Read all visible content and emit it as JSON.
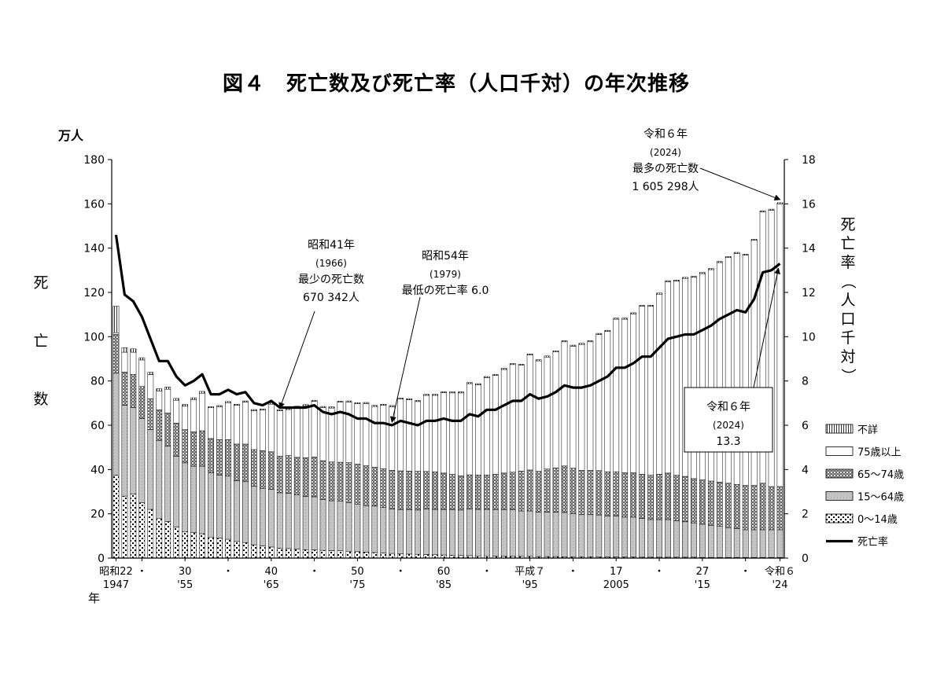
{
  "title": "図４　死亡数及び死亡率（人口千対）の年次推移",
  "chart_data": {
    "type": "bar+line",
    "left_axis": {
      "unit": "万人",
      "label_chars": [
        "死",
        "亡",
        "数"
      ],
      "range": [
        0,
        180
      ],
      "ticks": [
        "0",
        "20",
        "40",
        "60",
        "80",
        "100",
        "120",
        "140",
        "160",
        "180"
      ]
    },
    "right_axis": {
      "label_chars": [
        "死",
        "亡",
        "率",
        "（",
        "人",
        "口",
        "千",
        "対",
        "）"
      ],
      "range": [
        0,
        18
      ],
      "ticks": [
        "0",
        "2",
        "4",
        "6",
        "8",
        "10",
        "12",
        "14",
        "16",
        "18"
      ]
    },
    "x_axis": {
      "year_label": "年",
      "start_year": 1947,
      "end_year": 2024,
      "ticks_top": [
        {
          "year": 1947,
          "label": "昭和22"
        },
        {
          "year": 1950,
          "label": "・"
        },
        {
          "year": 1955,
          "label": "30"
        },
        {
          "year": 1960,
          "label": "・"
        },
        {
          "year": 1965,
          "label": "40"
        },
        {
          "year": 1970,
          "label": "・"
        },
        {
          "year": 1975,
          "label": "50"
        },
        {
          "year": 1980,
          "label": "・"
        },
        {
          "year": 1985,
          "label": "60"
        },
        {
          "year": 1990,
          "label": "・"
        },
        {
          "year": 1995,
          "label": "平成７"
        },
        {
          "year": 2000,
          "label": "・"
        },
        {
          "year": 2005,
          "label": "17"
        },
        {
          "year": 2010,
          "label": "・"
        },
        {
          "year": 2015,
          "label": "27"
        },
        {
          "year": 2020,
          "label": "・"
        },
        {
          "year": 2024,
          "label": "令和６"
        }
      ],
      "ticks_bottom": [
        {
          "year": 1947,
          "label": "1947"
        },
        {
          "year": 1955,
          "label": "'55"
        },
        {
          "year": 1965,
          "label": "'65"
        },
        {
          "year": 1975,
          "label": "'75"
        },
        {
          "year": 1985,
          "label": "'85"
        },
        {
          "year": 1995,
          "label": "'95"
        },
        {
          "year": 2005,
          "label": "2005"
        },
        {
          "year": 2015,
          "label": "'15"
        },
        {
          "year": 2024,
          "label": "'24"
        }
      ]
    },
    "legend": {
      "placement": "right",
      "items": [
        {
          "key": "unknown",
          "label": "不詳"
        },
        {
          "key": "age75",
          "label": "75歳以上"
        },
        {
          "key": "age65",
          "label": "65～74歳"
        },
        {
          "key": "age15",
          "label": "15～64歳"
        },
        {
          "key": "age0",
          "label": "0～14歳"
        },
        {
          "key": "rate",
          "label": "死亡率"
        }
      ]
    },
    "annotations": {
      "min_deaths": {
        "lines": [
          "昭和41年",
          "(1966)",
          "最少の死亡数",
          "670 342人"
        ]
      },
      "min_rate": {
        "lines": [
          "昭和54年",
          "(1979)",
          "最低の死亡率 6.0"
        ]
      },
      "max_deaths": {
        "lines": [
          "令和６年",
          "(2024)",
          "最多の死亡数",
          "1 605 298人"
        ]
      },
      "rate_2024": {
        "lines": [
          "令和６年",
          "(2024)",
          "13.3"
        ]
      }
    },
    "years": [
      1947,
      1948,
      1949,
      1950,
      1951,
      1952,
      1953,
      1954,
      1955,
      1956,
      1957,
      1958,
      1959,
      1960,
      1961,
      1962,
      1963,
      1964,
      1965,
      1966,
      1967,
      1968,
      1969,
      1970,
      1971,
      1972,
      1973,
      1974,
      1975,
      1976,
      1977,
      1978,
      1979,
      1980,
      1981,
      1982,
      1983,
      1984,
      1985,
      1986,
      1987,
      1988,
      1989,
      1990,
      1991,
      1992,
      1993,
      1994,
      1995,
      1996,
      1997,
      1998,
      1999,
      2000,
      2001,
      2002,
      2003,
      2004,
      2005,
      2006,
      2007,
      2008,
      2009,
      2010,
      2011,
      2012,
      2013,
      2014,
      2015,
      2016,
      2017,
      2018,
      2019,
      2020,
      2021,
      2022,
      2023,
      2024
    ],
    "total_deaths": [
      113.8,
      95.0,
      94.5,
      90.5,
      83.9,
      76.5,
      77.3,
      72.1,
      69.4,
      72.4,
      75.3,
      68.4,
      68.9,
      70.7,
      69.5,
      71.0,
      67.1,
      67.4,
      70.0,
      67.0,
      67.6,
      68.6,
      69.3,
      71.3,
      68.5,
      68.3,
      70.9,
      71.0,
      70.2,
      70.3,
      69.0,
      69.5,
      68.9,
      72.3,
      72.0,
      71.2,
      74.0,
      74.0,
      75.2,
      75.1,
      75.1,
      79.3,
      78.8,
      82.0,
      83.0,
      85.7,
      87.9,
      87.6,
      92.2,
      89.6,
      91.3,
      93.6,
      98.2,
      96.2,
      97.0,
      98.2,
      101.5,
      102.9,
      108.4,
      108.4,
      110.8,
      114.2,
      114.2,
      119.7,
      125.3,
      125.6,
      126.8,
      127.3,
      129.0,
      130.8,
      134.0,
      136.2,
      138.1,
      137.3,
      144.0,
      156.9,
      157.6,
      160.5
    ],
    "age_0_14": [
      37.5,
      28.0,
      29.0,
      25.0,
      22.0,
      18.0,
      16.5,
      14.0,
      12.0,
      11.5,
      11.0,
      9.5,
      9.0,
      8.5,
      7.5,
      7.0,
      6.0,
      5.5,
      5.0,
      4.5,
      4.3,
      4.0,
      3.8,
      3.7,
      3.5,
      3.4,
      3.3,
      3.1,
      2.9,
      2.7,
      2.5,
      2.3,
      2.1,
      1.9,
      1.8,
      1.7,
      1.6,
      1.5,
      1.4,
      1.3,
      1.2,
      1.1,
      1.0,
      1.0,
      0.9,
      0.9,
      0.8,
      0.8,
      0.8,
      0.7,
      0.7,
      0.7,
      0.6,
      0.6,
      0.6,
      0.6,
      0.5,
      0.5,
      0.5,
      0.5,
      0.5,
      0.4,
      0.4,
      0.4,
      0.4,
      0.4,
      0.4,
      0.4,
      0.3,
      0.3,
      0.3,
      0.3,
      0.3,
      0.3,
      0.3,
      0.3,
      0.3,
      0.3
    ],
    "age_15_64": [
      46.0,
      41.0,
      39.0,
      38.0,
      36.0,
      35.0,
      34.0,
      32.0,
      31.0,
      30.0,
      30.5,
      29.0,
      28.5,
      28.5,
      27.5,
      27.5,
      26.5,
      26.0,
      26.0,
      25.0,
      25.0,
      24.5,
      24.0,
      24.0,
      23.0,
      22.5,
      22.5,
      22.0,
      21.5,
      21.0,
      21.0,
      20.5,
      20.0,
      20.0,
      20.0,
      20.0,
      20.5,
      20.5,
      20.5,
      20.5,
      20.5,
      21.0,
      21.0,
      21.0,
      21.0,
      21.0,
      21.0,
      20.5,
      20.5,
      20.0,
      20.0,
      20.0,
      20.0,
      19.5,
      19.0,
      19.0,
      19.0,
      18.5,
      18.5,
      18.0,
      18.0,
      17.5,
      17.0,
      17.0,
      17.0,
      16.5,
      16.0,
      15.5,
      15.0,
      14.5,
      14.0,
      13.5,
      13.0,
      12.5,
      12.5,
      12.5,
      12.5,
      12.5
    ],
    "age_65_74": [
      17.5,
      15.0,
      15.0,
      14.5,
      14.0,
      14.0,
      15.0,
      15.0,
      15.0,
      15.5,
      16.0,
      15.5,
      16.0,
      16.5,
      16.5,
      17.0,
      16.5,
      17.0,
      17.0,
      16.5,
      17.0,
      17.0,
      17.5,
      18.0,
      17.5,
      17.5,
      17.5,
      18.0,
      18.0,
      18.0,
      17.5,
      17.5,
      17.5,
      17.5,
      17.5,
      17.5,
      17.0,
      17.0,
      16.5,
      16.0,
      15.5,
      15.5,
      15.5,
      15.5,
      16.0,
      16.5,
      17.0,
      18.0,
      18.5,
      18.5,
      19.5,
      20.0,
      21.0,
      20.5,
      20.0,
      20.0,
      20.0,
      20.0,
      20.0,
      20.0,
      20.0,
      20.0,
      20.0,
      20.5,
      21.0,
      20.5,
      20.5,
      20.0,
      20.0,
      20.0,
      20.0,
      20.0,
      20.0,
      20.0,
      20.0,
      21.0,
      19.5,
      19.5
    ],
    "unknown": [
      12.0,
      2.0,
      1.5,
      1.0,
      1.0,
      1.0,
      1.0,
      0.8,
      0.8,
      0.8,
      0.8,
      0.5,
      0.5,
      0.5,
      0.5,
      0.5,
      0.5,
      0.5,
      0.5,
      0.5,
      0.5,
      0.5,
      0.5,
      0.5,
      0.5,
      0.5,
      0.5,
      0.5,
      0.5,
      0.5,
      0.5,
      0.5,
      0.5,
      0.5,
      0.5,
      0.5,
      0.5,
      0.5,
      0.5,
      0.5,
      0.5,
      0.5,
      0.5,
      0.5,
      0.5,
      0.5,
      0.5,
      0.5,
      0.5,
      0.5,
      0.5,
      0.5,
      0.5,
      0.5,
      0.5,
      0.5,
      0.5,
      0.5,
      0.5,
      0.5,
      0.5,
      0.5,
      0.5,
      0.5,
      0.5,
      0.5,
      0.5,
      0.5,
      0.5,
      0.5,
      0.5,
      0.5,
      0.5,
      0.5,
      0.5,
      0.5,
      0.5,
      0.5
    ],
    "death_rate": [
      14.6,
      11.9,
      11.6,
      10.9,
      9.9,
      8.9,
      8.9,
      8.2,
      7.8,
      8.0,
      8.3,
      7.4,
      7.4,
      7.6,
      7.4,
      7.5,
      7.0,
      6.9,
      7.1,
      6.8,
      6.8,
      6.8,
      6.8,
      6.9,
      6.6,
      6.5,
      6.6,
      6.5,
      6.3,
      6.3,
      6.1,
      6.1,
      6.0,
      6.2,
      6.1,
      6.0,
      6.2,
      6.2,
      6.3,
      6.2,
      6.2,
      6.5,
      6.4,
      6.7,
      6.7,
      6.9,
      7.1,
      7.1,
      7.4,
      7.2,
      7.3,
      7.5,
      7.8,
      7.7,
      7.7,
      7.8,
      8.0,
      8.2,
      8.6,
      8.6,
      8.8,
      9.1,
      9.1,
      9.5,
      9.9,
      10.0,
      10.1,
      10.1,
      10.3,
      10.5,
      10.8,
      11.0,
      11.2,
      11.1,
      11.7,
      12.9,
      13.0,
      13.3
    ]
  }
}
